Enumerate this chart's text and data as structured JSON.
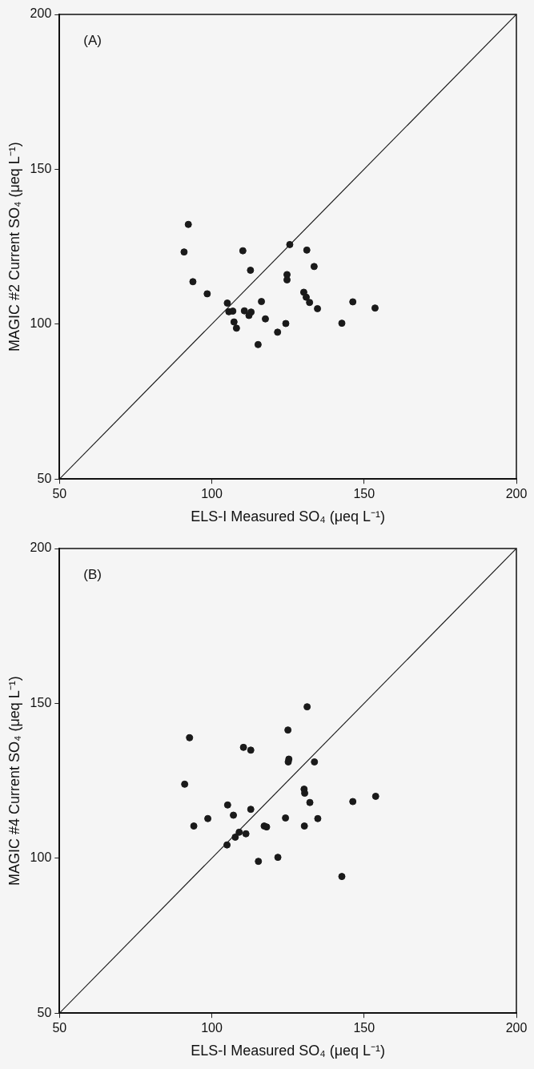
{
  "chart_data": [
    {
      "type": "scatter",
      "xlabel": "ELS-I Measured SO₄ (μeq L⁻¹)",
      "ylabel": "MAGIC #2 Current SO₄ (μeq L⁻¹)",
      "annotations": [
        "(A)"
      ],
      "xlim": [
        50,
        200
      ],
      "ylim": [
        50,
        200
      ],
      "xticks": [
        50,
        100,
        150,
        200
      ],
      "yticks": [
        50,
        100,
        150,
        200
      ],
      "legend": false,
      "grid": false,
      "series": [
        {
          "marker": "circle",
          "color": "#1a1a1a",
          "x": [
            92.3,
            90.9,
            110.2,
            125.6,
            131.2,
            112.7,
            133.6,
            124.7,
            124.7,
            93.8,
            98.5,
            105.1,
            105.6,
            106.9,
            107.3,
            108.1,
            110.7,
            112.9,
            112.2,
            116.3,
            117.6,
            115.2,
            121.6,
            124.3,
            130.2,
            131.0,
            132.1,
            134.7,
            142.7,
            146.3,
            153.6
          ],
          "values": [
            132.2,
            123.3,
            123.7,
            125.7,
            123.9,
            117.4,
            118.6,
            116.0,
            114.3,
            113.7,
            109.8,
            106.8,
            104.0,
            104.2,
            100.7,
            98.7,
            104.3,
            103.9,
            102.8,
            107.3,
            101.7,
            93.4,
            97.4,
            100.2,
            110.3,
            108.7,
            107.0,
            105.0,
            100.3,
            107.2,
            105.2
          ]
        },
        {
          "type": "line",
          "marker": "none",
          "color": "#1a1a1a",
          "x": [
            50,
            200
          ],
          "values": [
            50,
            200
          ]
        }
      ]
    },
    {
      "type": "scatter",
      "xlabel": "ELS-I Measured SO₄ (μeq L⁻¹)",
      "ylabel": "MAGIC #4 Current SO₄ (μeq L⁻¹)",
      "annotations": [
        "(B)"
      ],
      "xlim": [
        50,
        200
      ],
      "ylim": [
        50,
        200
      ],
      "xticks": [
        50,
        100,
        150,
        200
      ],
      "yticks": [
        50,
        100,
        150,
        200
      ],
      "legend": false,
      "grid": false,
      "series": [
        {
          "marker": "circle",
          "color": "#1a1a1a",
          "x": [
            131.3,
            125.0,
            92.7,
            110.4,
            112.8,
            125.1,
            125.3,
            133.7,
            91.1,
            130.3,
            130.5,
            132.2,
            146.3,
            153.8,
            105.2,
            107.1,
            112.8,
            98.7,
            124.2,
            134.8,
            94.1,
            117.2,
            118.0,
            130.4,
            109.0,
            111.2,
            107.7,
            105.0,
            115.3,
            121.7,
            142.7
          ],
          "values": [
            148.9,
            141.4,
            138.9,
            135.8,
            134.9,
            131.1,
            132.0,
            131.1,
            123.9,
            122.3,
            121.0,
            118.0,
            118.3,
            120.0,
            117.2,
            113.9,
            115.8,
            112.8,
            113.0,
            112.8,
            110.4,
            110.4,
            110.1,
            110.4,
            108.4,
            107.9,
            106.8,
            104.3,
            99.0,
            100.3,
            94.1
          ]
        },
        {
          "type": "line",
          "marker": "none",
          "color": "#1a1a1a",
          "x": [
            50,
            200
          ],
          "values": [
            50,
            200
          ]
        }
      ]
    }
  ]
}
